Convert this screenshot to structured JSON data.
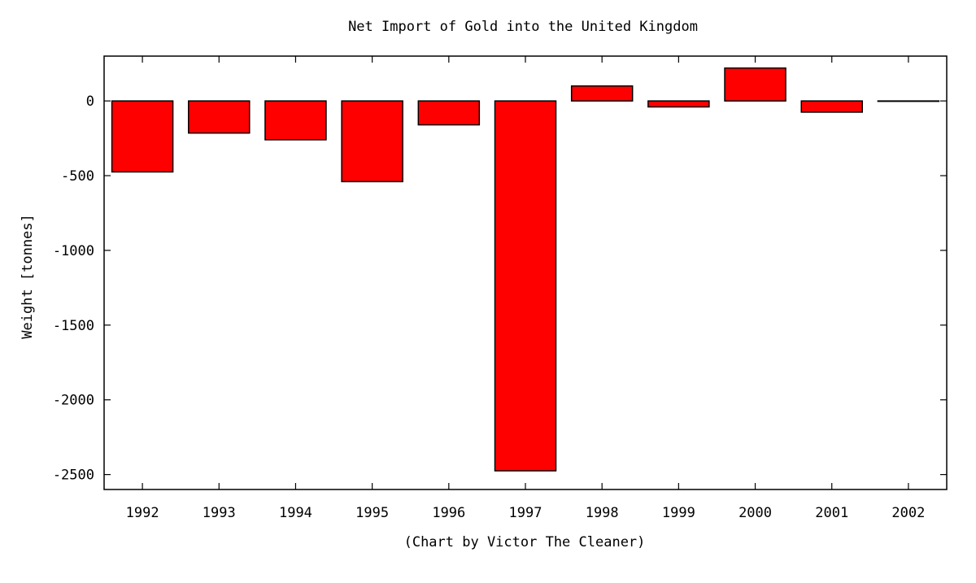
{
  "chart_data": {
    "type": "bar",
    "title": "Net Import of Gold into the United Kingdom",
    "xlabel": "(Chart by Victor The Cleaner)",
    "ylabel": "Weight [tonnes]",
    "categories": [
      "1992",
      "1993",
      "1994",
      "1995",
      "1996",
      "1997",
      "1998",
      "1999",
      "2000",
      "2001",
      "2002"
    ],
    "values": [
      -475,
      -215,
      -260,
      -540,
      -160,
      -2475,
      100,
      -40,
      220,
      -75,
      0
    ],
    "ylim": [
      -2600,
      300
    ],
    "yticks": [
      0,
      -500,
      -1000,
      -1500,
      -2000,
      -2500
    ],
    "ytick_labels": [
      "0",
      "-500",
      "-1000",
      "-1500",
      "-2000",
      "-2500"
    ],
    "colors": {
      "bar_fill": "#ff0000",
      "bar_stroke": "#000000"
    },
    "grid": false,
    "legend": "none"
  }
}
